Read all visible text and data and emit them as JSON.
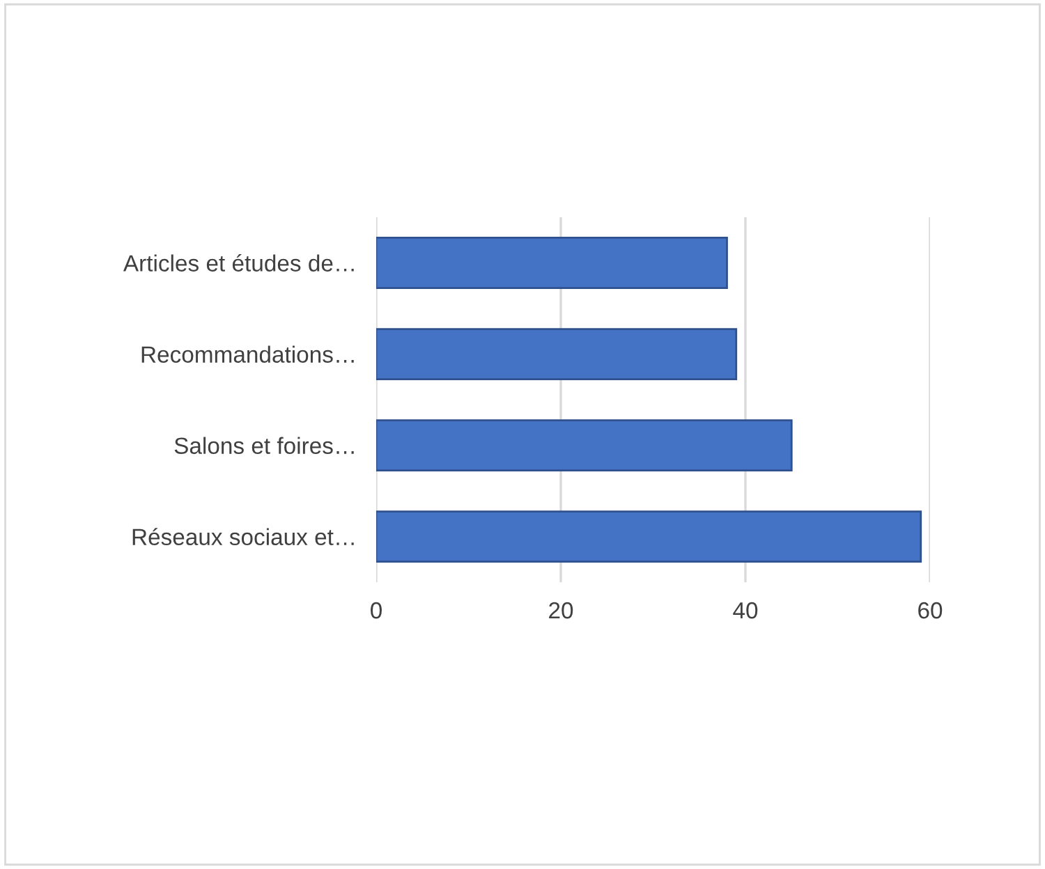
{
  "chart_data": {
    "type": "bar",
    "orientation": "horizontal",
    "categories": [
      "Articles et études de…",
      "Recommandations…",
      "Salons et foires…",
      "Réseaux sociaux et…"
    ],
    "values": [
      38,
      39,
      45,
      59
    ],
    "color": "#4472c4",
    "xlim": [
      0,
      60
    ],
    "xticks": [
      0,
      20,
      40,
      60
    ],
    "grid": "x"
  }
}
